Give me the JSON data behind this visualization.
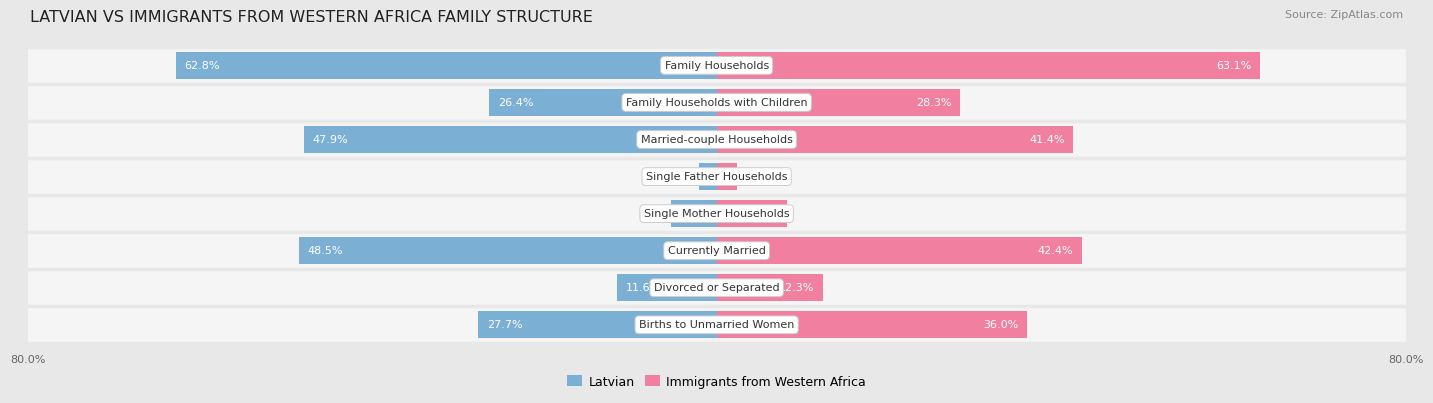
{
  "title": "LATVIAN VS IMMIGRANTS FROM WESTERN AFRICA FAMILY STRUCTURE",
  "source": "Source: ZipAtlas.com",
  "categories": [
    "Family Households",
    "Family Households with Children",
    "Married-couple Households",
    "Single Father Households",
    "Single Mother Households",
    "Currently Married",
    "Divorced or Separated",
    "Births to Unmarried Women"
  ],
  "latvian_values": [
    62.8,
    26.4,
    47.9,
    2.0,
    5.3,
    48.5,
    11.6,
    27.7
  ],
  "immigrant_values": [
    63.1,
    28.3,
    41.4,
    2.4,
    8.2,
    42.4,
    12.3,
    36.0
  ],
  "latvian_color": "#7bafd4",
  "immigrant_color": "#f07fa0",
  "axis_max": 80.0,
  "background_color": "#e8e8e8",
  "row_bg_color": "#f5f5f5",
  "bar_height": 0.72,
  "label_fontsize": 8.0,
  "title_fontsize": 11.5,
  "legend_fontsize": 9,
  "source_fontsize": 8,
  "inside_label_thresh": 8,
  "x_tick_labels": [
    "80.0%",
    "80.0%"
  ]
}
